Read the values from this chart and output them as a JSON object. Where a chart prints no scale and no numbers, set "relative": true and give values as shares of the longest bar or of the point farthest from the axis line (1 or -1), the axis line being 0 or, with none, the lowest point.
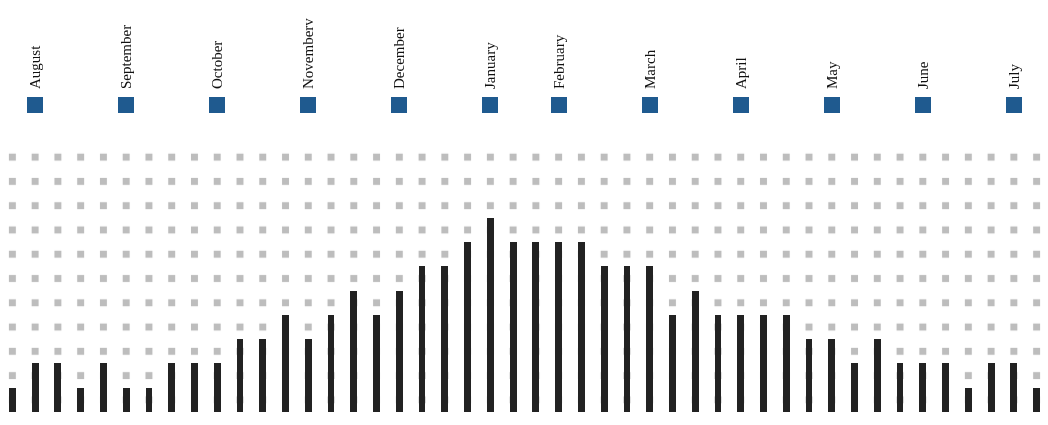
{
  "chart_data": {
    "type": "bar",
    "relative": true,
    "color": "#222222",
    "categories": [
      null,
      "August",
      null,
      null,
      null,
      "September",
      null,
      null,
      null,
      "October",
      null,
      null,
      null,
      "Novemberv",
      null,
      null,
      null,
      "December",
      null,
      null,
      null,
      "January",
      null,
      null,
      "February",
      null,
      null,
      null,
      "March",
      null,
      null,
      null,
      "April",
      null,
      null,
      null,
      "May",
      null,
      null,
      null,
      "June",
      null,
      null,
      null,
      "July",
      null
    ],
    "values": [
      0.125,
      0.25,
      0.25,
      0.125,
      0.25,
      0.125,
      0.125,
      0.25,
      0.25,
      0.25,
      0.375,
      0.375,
      0.5,
      0.375,
      0.5,
      0.625,
      0.5,
      0.625,
      0.75,
      0.75,
      0.875,
      1,
      0.875,
      0.875,
      0.875,
      0.875,
      0.75,
      0.75,
      0.75,
      0.5,
      0.625,
      0.5,
      0.5,
      0.5,
      0.5,
      0.375,
      0.375,
      0.25,
      0.375,
      0.25,
      0.25,
      0.25,
      0.125,
      0.25,
      0.25,
      0.125
    ]
  }
}
